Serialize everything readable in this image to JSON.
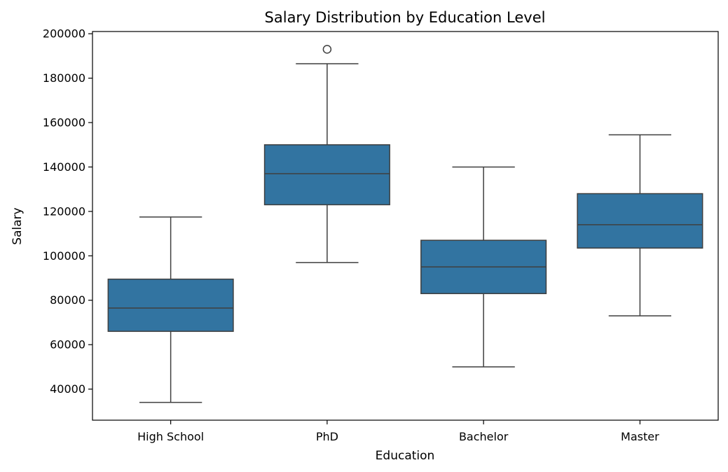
{
  "chart_data": {
    "type": "box",
    "title": "Salary Distribution by Education Level",
    "xlabel": "Education",
    "ylabel": "Salary",
    "categories": [
      "High School",
      "PhD",
      "Bachelor",
      "Master"
    ],
    "boxes": [
      {
        "category": "High School",
        "whisker_low": 34000,
        "q1": 66000,
        "median": 76500,
        "q3": 89500,
        "whisker_high": 117500,
        "outliers": []
      },
      {
        "category": "PhD",
        "whisker_low": 97000,
        "q1": 123000,
        "median": 137000,
        "q3": 150000,
        "whisker_high": 186500,
        "outliers": [
          193000
        ]
      },
      {
        "category": "Bachelor",
        "whisker_low": 50000,
        "q1": 83000,
        "median": 95000,
        "q3": 107000,
        "whisker_high": 140000,
        "outliers": []
      },
      {
        "category": "Master",
        "whisker_low": 73000,
        "q1": 103500,
        "median": 114000,
        "q3": 128000,
        "whisker_high": 154500,
        "outliers": []
      }
    ],
    "ylim": [
      26000,
      201000
    ],
    "yticks": [
      40000,
      60000,
      80000,
      100000,
      120000,
      140000,
      160000,
      180000,
      200000
    ],
    "ytick_labels": [
      "40000",
      "60000",
      "80000",
      "100000",
      "120000",
      "140000",
      "160000",
      "180000",
      "200000"
    ],
    "grid": false,
    "colors": {
      "box_fill": "#3274a1",
      "line": "#3f3f3f",
      "axis": "#000000"
    }
  }
}
